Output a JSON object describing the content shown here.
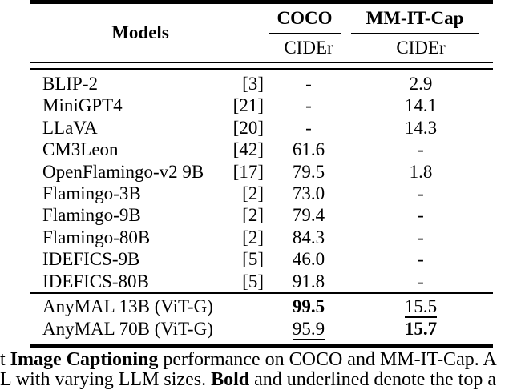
{
  "table": {
    "header": {
      "models_label": "Models",
      "col_groups": [
        {
          "label": "COCO"
        },
        {
          "label": "MM-IT-Cap"
        }
      ],
      "subheaders": [
        "CIDEr",
        "CIDEr"
      ]
    },
    "rows": [
      {
        "name": "BLIP-2",
        "cite": "[3]",
        "coco": "-",
        "mmit": "2.9"
      },
      {
        "name": "MiniGPT4",
        "cite": "[21]",
        "coco": "-",
        "mmit": "14.1"
      },
      {
        "name": "LLaVA",
        "cite": "[20]",
        "coco": "-",
        "mmit": "14.3"
      },
      {
        "name": "CM3Leon",
        "cite": "[42]",
        "coco": "61.6",
        "mmit": "-"
      },
      {
        "name": "OpenFlamingo-v2 9B",
        "cite": "[17]",
        "coco": "79.5",
        "mmit": "1.8"
      },
      {
        "name": "Flamingo-3B",
        "cite": "[2]",
        "coco": "73.0",
        "mmit": "-"
      },
      {
        "name": "Flamingo-9B",
        "cite": "[2]",
        "coco": "79.4",
        "mmit": "-"
      },
      {
        "name": "Flamingo-80B",
        "cite": "[2]",
        "coco": "84.3",
        "mmit": "-"
      },
      {
        "name": "IDEFICS-9B",
        "cite": "[5]",
        "coco": "46.0",
        "mmit": "-"
      },
      {
        "name": "IDEFICS-80B",
        "cite": "[5]",
        "coco": "91.8",
        "mmit": "-"
      }
    ],
    "anymal_rows": [
      {
        "name": "AnyMAL 13B (ViT-G)",
        "coco": "99.5",
        "mmit": "15.5",
        "coco_style": "bold",
        "mmit_style": "underline"
      },
      {
        "name": "AnyMAL 70B (ViT-G)",
        "coco": "95.9",
        "mmit": "15.7",
        "coco_style": "underline",
        "mmit_style": "bold"
      }
    ]
  },
  "caption": {
    "line1": {
      "lead": "t ",
      "bold_underline": "Image",
      "bold": " Captioning",
      "rest": " performance on COCO and MM-IT-Cap. A"
    },
    "line2": {
      "lead": "L with varying LLM sizes. ",
      "bold": "Bold",
      "rest": " and underlined denote the top a"
    }
  },
  "colors": {
    "text": "#000000",
    "background": "#ffffff",
    "rule": "#000000"
  }
}
